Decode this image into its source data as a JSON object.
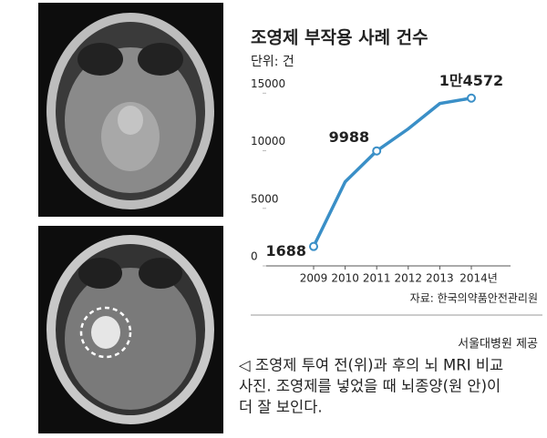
{
  "chart_data": {
    "type": "line",
    "title": "조영제 부작용 사례 건수",
    "subtitle": "단위: 건",
    "categories": [
      "2009",
      "2010",
      "2011",
      "2012",
      "2013",
      "2014년"
    ],
    "values": [
      1688,
      7300,
      9988,
      11900,
      14100,
      14572
    ],
    "value_labels": [
      "1688",
      null,
      "9988",
      null,
      null,
      "1만4572"
    ],
    "color": "#3a8fc7",
    "ylim": [
      0,
      15500
    ],
    "yticks": [
      0,
      5000,
      10000,
      15000
    ],
    "source": "자료: 한국의약품안전관리원"
  },
  "image_credit": "서울대병원 제공",
  "caption": [
    "◁ 조영제 투여 전(위)과 후의 뇌 MRI 비교",
    "사진. 조영제를 넣었을 때 뇌종양(원 안)이",
    "더 잘 보인다."
  ]
}
